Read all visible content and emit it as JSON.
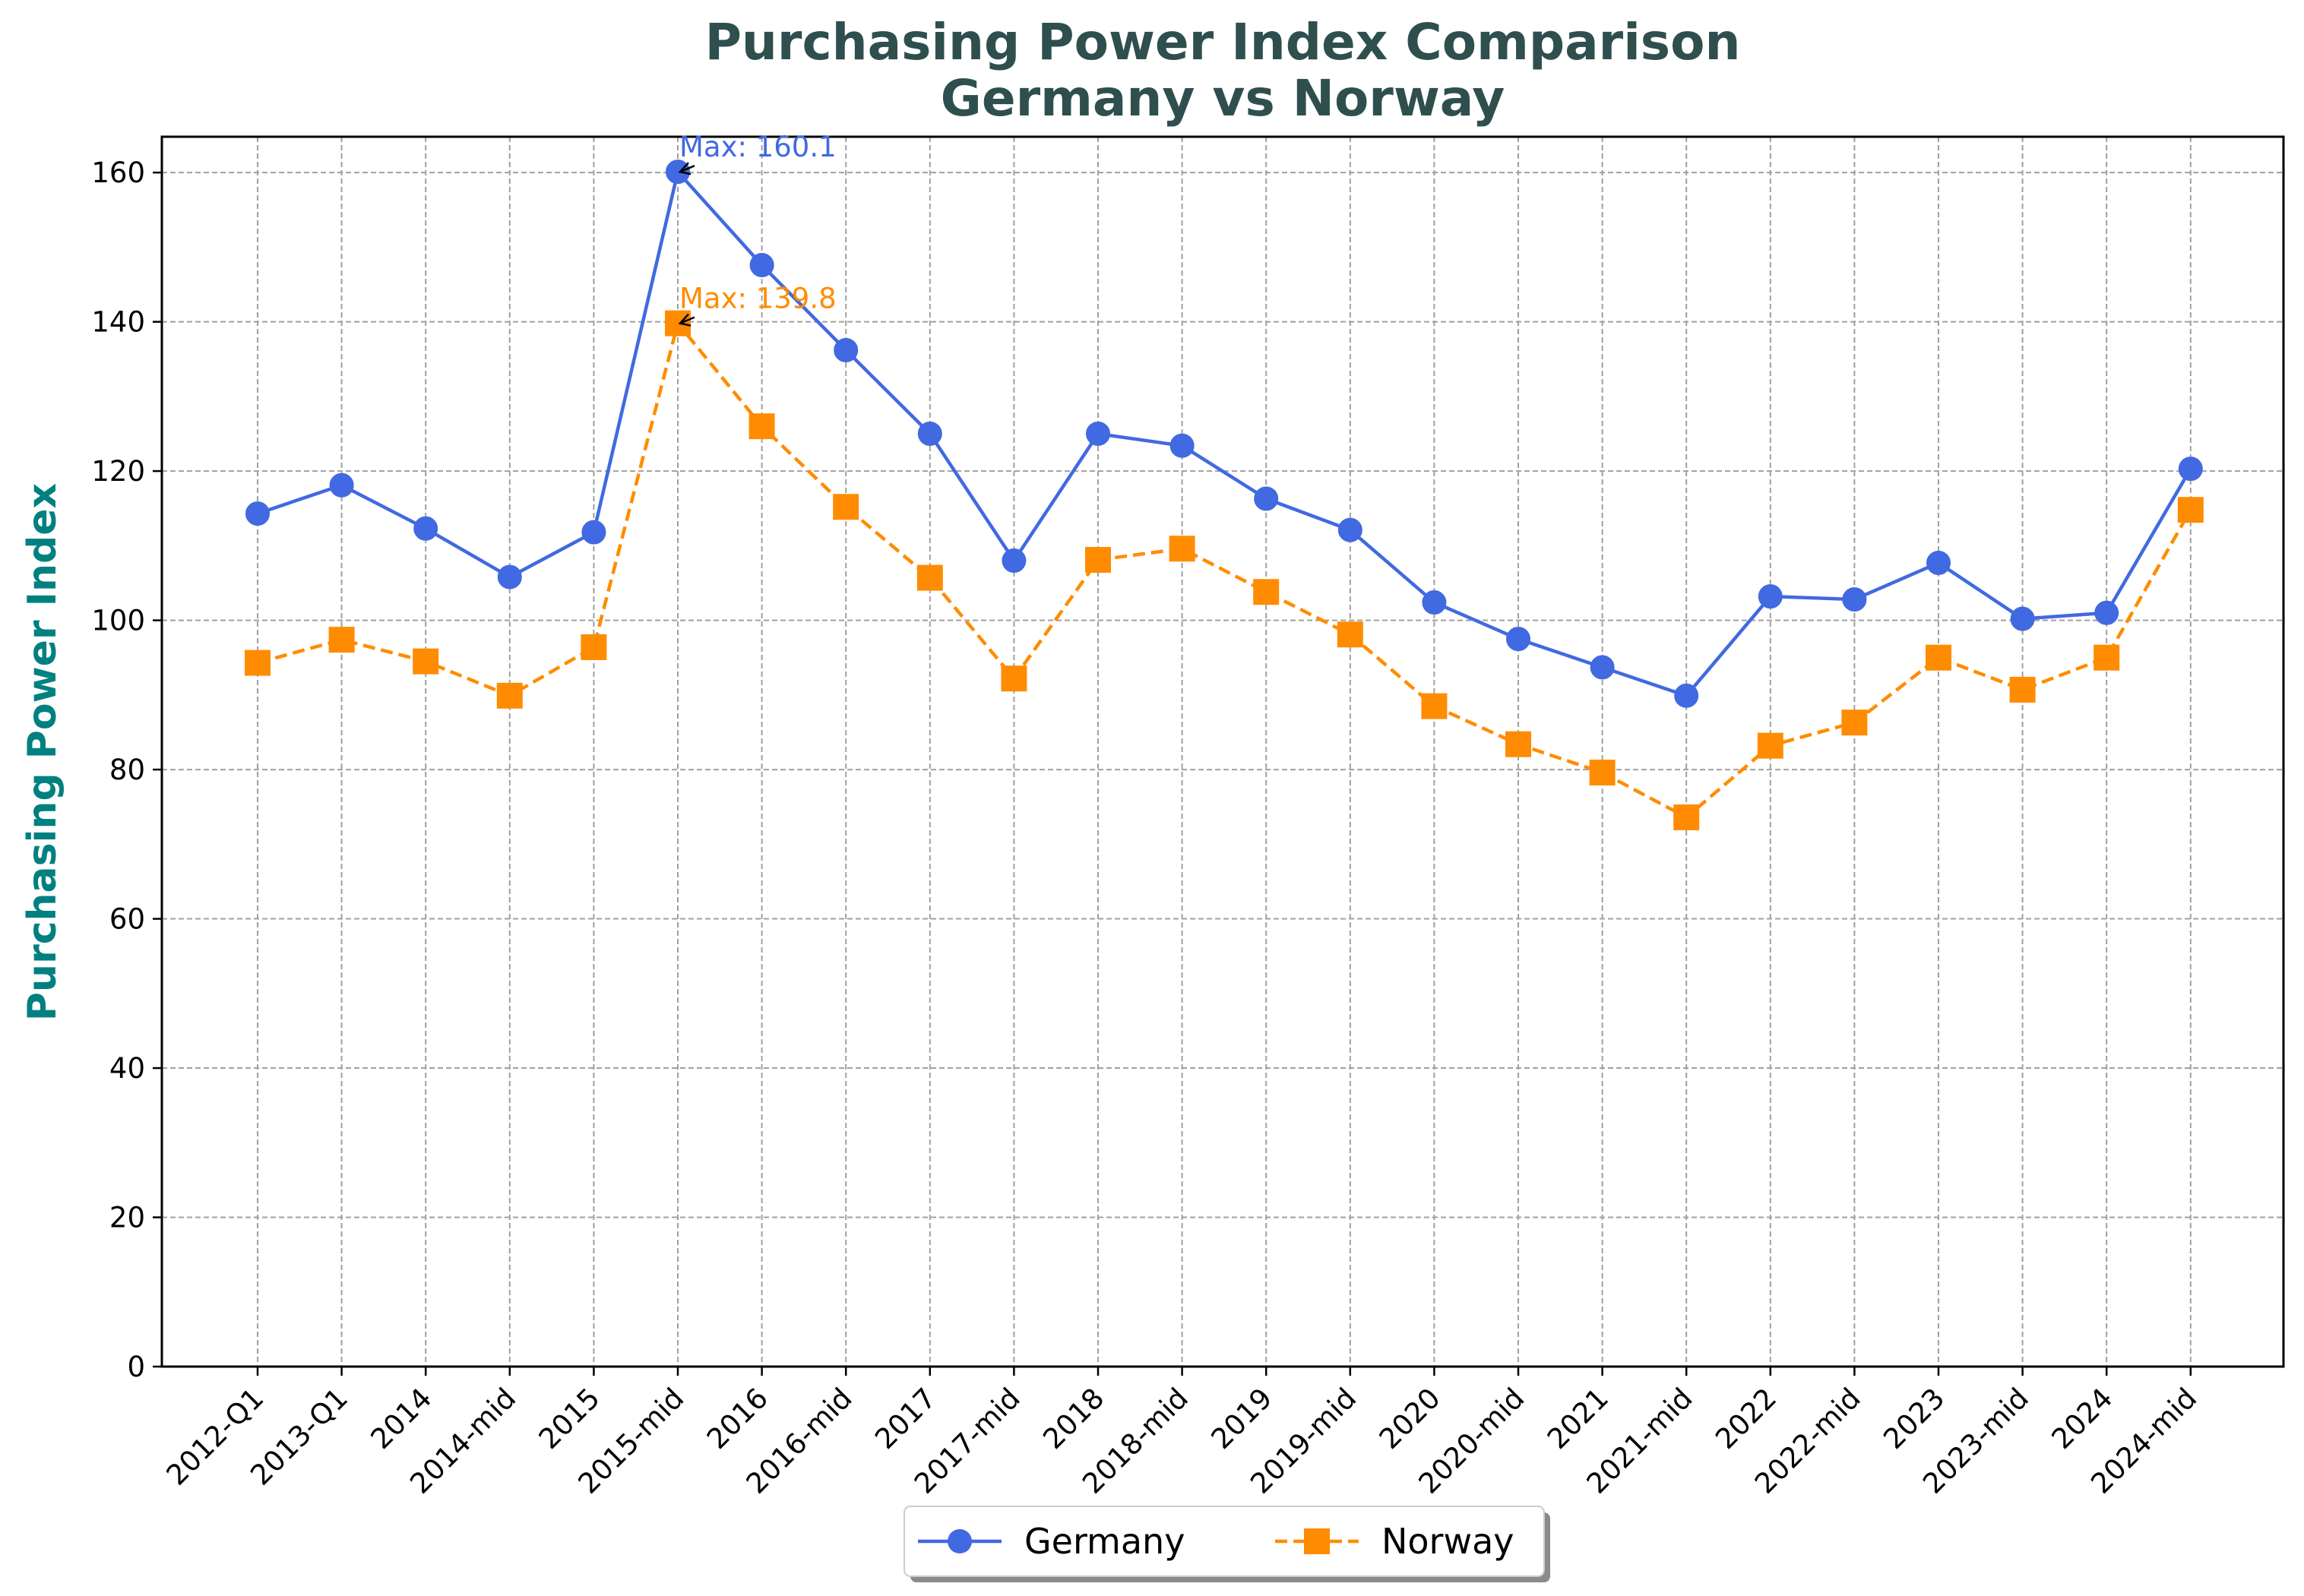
{
  "chart_data": {
    "type": "line",
    "title": "Purchasing Power Index Comparison",
    "subtitle": "Germany vs Norway",
    "xlabel": "",
    "ylabel": "Purchasing Power Index",
    "ylim": [
      0,
      164.8
    ],
    "yticks": [
      0,
      20,
      40,
      60,
      80,
      100,
      120,
      140,
      160
    ],
    "grid": true,
    "legend_placement": "bottom-center",
    "categories": [
      "2012-Q1",
      "2013-Q1",
      "2014",
      "2014-mid",
      "2015",
      "2015-mid",
      "2016",
      "2016-mid",
      "2017",
      "2017-mid",
      "2018",
      "2018-mid",
      "2019",
      "2019-mid",
      "2020",
      "2020-mid",
      "2021",
      "2021-mid",
      "2022",
      "2022-mid",
      "2023",
      "2023-mid",
      "2024",
      "2024-mid"
    ],
    "series": [
      {
        "name": "Germany",
        "color": "#4169E1",
        "marker": "circle",
        "line_style": "solid",
        "values": [
          114.3,
          118.1,
          112.3,
          105.8,
          111.8,
          160.1,
          147.6,
          136.2,
          125.0,
          108.0,
          125.0,
          123.4,
          116.3,
          112.1,
          102.4,
          97.5,
          93.7,
          89.9,
          103.2,
          102.8,
          107.7,
          100.2,
          101.0,
          120.3
        ]
      },
      {
        "name": "Norway",
        "color": "#FF8C00",
        "marker": "square",
        "line_style": "dashed",
        "values": [
          94.3,
          97.4,
          94.5,
          89.9,
          96.4,
          139.8,
          126.0,
          115.2,
          105.7,
          92.2,
          108.1,
          109.6,
          103.8,
          98.1,
          88.5,
          83.4,
          79.6,
          73.6,
          83.2,
          86.3,
          95.0,
          90.7,
          95.0,
          114.8
        ]
      }
    ],
    "annotations": [
      {
        "series": "Germany",
        "category": "2015-mid",
        "value": 160.1,
        "text": "Max: 160.1"
      },
      {
        "series": "Norway",
        "category": "2015-mid",
        "value": 139.8,
        "text": "Max: 139.8"
      }
    ]
  }
}
